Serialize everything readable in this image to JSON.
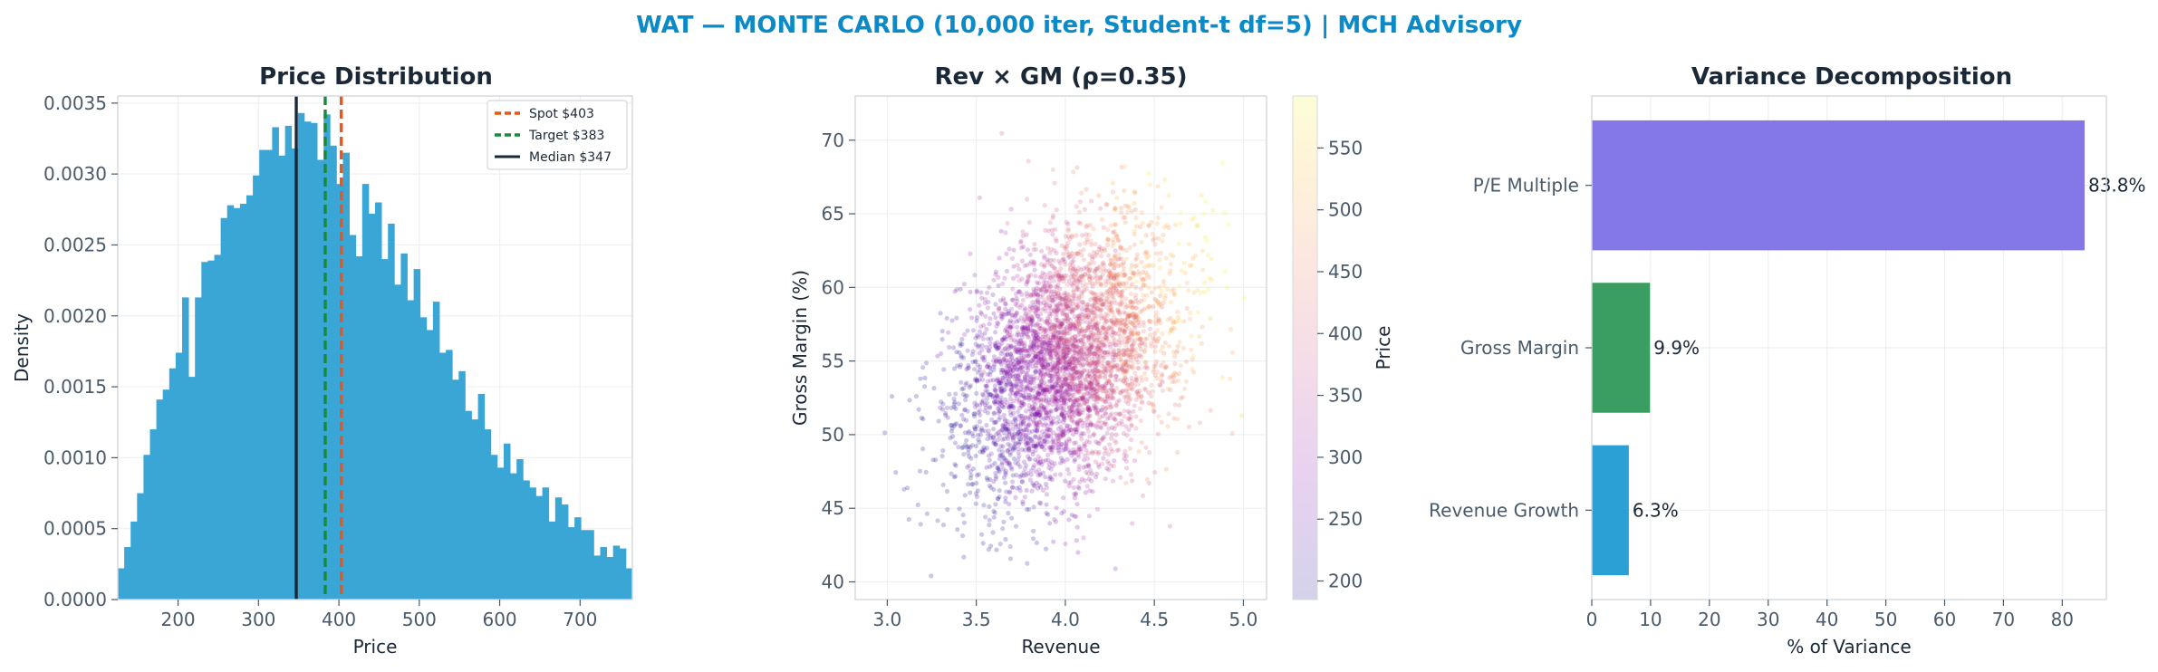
{
  "suptitle": "WAT — MONTE CARLO (10,000 iter, Student-t df=5) | MCH Advisory",
  "colors": {
    "suptitle": "#0a8ac6",
    "title": "#1b2838",
    "tick": "#4a5a6a",
    "histogram": "#3aa6d6",
    "spot": "#e8561a",
    "target": "#1a8a3a",
    "median": "#1b2838",
    "bar_pe": "#8478e8",
    "bar_gm": "#3a9e62",
    "bar_rev": "#2aa0d4"
  },
  "chart_data": [
    {
      "type": "bar",
      "subtype": "histogram",
      "title": "Price Distribution",
      "xlabel": "Price",
      "ylabel": "Density",
      "xlim": [
        125,
        765
      ],
      "ylim": [
        0,
        0.00355
      ],
      "xticks": [
        200,
        300,
        400,
        500,
        600,
        700
      ],
      "yticks": [
        0.0,
        0.0005,
        0.001,
        0.0015,
        0.002,
        0.0025,
        0.003,
        0.0035
      ],
      "ytick_labels": [
        "0.0000",
        "0.0005",
        "0.0010",
        "0.0015",
        "0.0020",
        "0.0025",
        "0.0030",
        "0.0035"
      ],
      "bin_start": 125,
      "bin_width": 8,
      "densities": [
        0.00022,
        0.00037,
        0.00055,
        0.00075,
        0.00102,
        0.0012,
        0.00141,
        0.00148,
        0.00163,
        0.00174,
        0.00213,
        0.00157,
        0.00213,
        0.00238,
        0.00239,
        0.00243,
        0.00269,
        0.00278,
        0.00276,
        0.00279,
        0.00285,
        0.00299,
        0.00317,
        0.00317,
        0.00333,
        0.00313,
        0.00334,
        0.00318,
        0.00343,
        0.00337,
        0.00336,
        0.0031,
        0.00342,
        0.0032,
        0.00293,
        0.00315,
        0.00257,
        0.00242,
        0.00293,
        0.00272,
        0.0028,
        0.0024,
        0.00265,
        0.00222,
        0.00244,
        0.00211,
        0.00233,
        0.00199,
        0.0019,
        0.0021,
        0.00174,
        0.00176,
        0.00155,
        0.00161,
        0.00133,
        0.00127,
        0.00145,
        0.0012,
        0.00102,
        0.00093,
        0.0011,
        0.00089,
        0.00099,
        0.00084,
        0.00079,
        0.00073,
        0.00079,
        0.00055,
        0.00072,
        0.00067,
        0.00051,
        0.00058,
        0.00049,
        0.00049,
        0.00031,
        0.00037,
        0.0003,
        0.00038,
        0.00036,
        0.00022,
        0.00017
      ],
      "vlines": [
        {
          "label": "Spot $403",
          "x": 403,
          "style": "dashed",
          "color_key": "spot"
        },
        {
          "label": "Target $383",
          "x": 383,
          "style": "dashed",
          "color_key": "target"
        },
        {
          "label": "Median $347",
          "x": 347,
          "style": "solid",
          "color_key": "median"
        }
      ],
      "legend": "top-right",
      "grid": true
    },
    {
      "type": "scatter",
      "title": "Rev × GM (ρ=0.35)",
      "xlabel": "Revenue",
      "ylabel": "Gross Margin (%)",
      "xlim": [
        2.82,
        5.13
      ],
      "ylim": [
        38.8,
        73
      ],
      "xticks": [
        3.0,
        3.5,
        4.0,
        4.5,
        5.0
      ],
      "xtick_labels": [
        "3.0",
        "3.5",
        "4.0",
        "4.5",
        "5.0"
      ],
      "yticks": [
        40,
        45,
        50,
        55,
        60,
        65,
        70
      ],
      "n_points": 4000,
      "correlation": 0.35,
      "revenue_center": 4.0,
      "revenue_sd": 0.3,
      "gm_center": 55.0,
      "gm_sd": 4.6,
      "color_by": "Price",
      "colormap": "plasma",
      "colorbar": {
        "label": "Price",
        "min": 185,
        "max": 592,
        "ticks": [
          200,
          250,
          300,
          350,
          400,
          450,
          500,
          550
        ]
      },
      "grid": true
    },
    {
      "type": "bar",
      "orientation": "horizontal",
      "title": "Variance Decomposition",
      "xlabel": "% of Variance",
      "categories": [
        "P/E Multiple",
        "Gross Margin",
        "Revenue Growth"
      ],
      "values": [
        83.8,
        9.9,
        6.3
      ],
      "value_labels": [
        "83.8%",
        "9.9%",
        "6.3%"
      ],
      "color_keys": [
        "bar_pe",
        "bar_gm",
        "bar_rev"
      ],
      "xlim": [
        0,
        87.5
      ],
      "xticks": [
        0,
        10,
        20,
        30,
        40,
        50,
        60,
        70,
        80
      ],
      "grid": true
    }
  ]
}
